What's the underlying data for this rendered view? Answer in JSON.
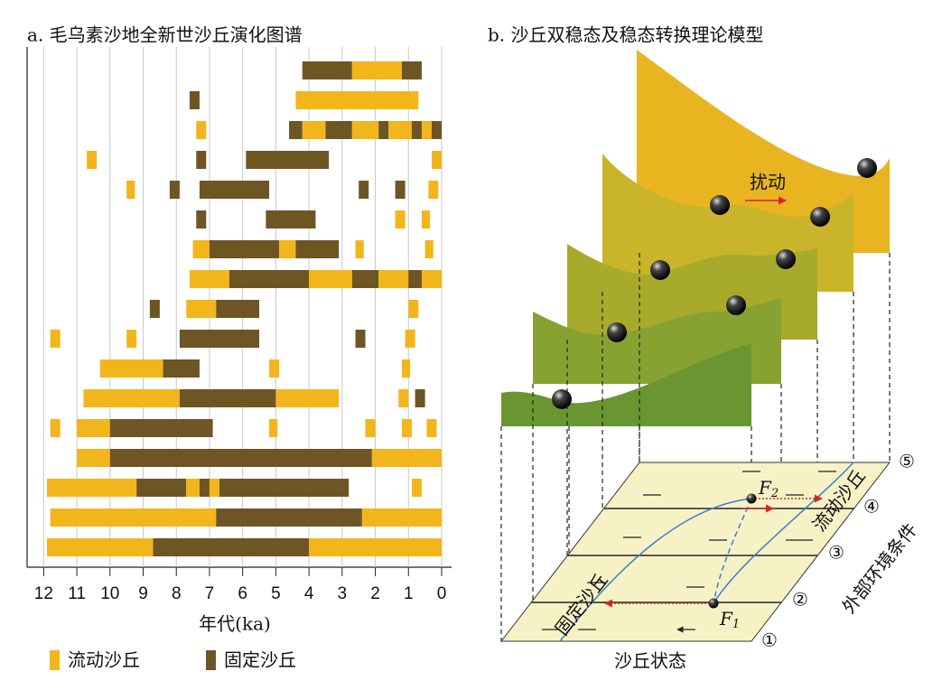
{
  "chart_data": {
    "type": "range-bar",
    "title": "a. 毛乌素沙地全新世沙丘演化图谱",
    "x_label": "年代(ka)",
    "xlim": [
      12.5,
      -0.3
    ],
    "xticks": [
      12,
      11,
      10,
      9,
      8,
      7,
      6,
      5,
      4,
      3,
      2,
      1,
      0
    ],
    "grid": true,
    "series": [
      {
        "name": "流动沙丘",
        "color": "#f2b51c"
      },
      {
        "name": "固定沙丘",
        "color": "#6e5524"
      }
    ],
    "rows": [
      [
        [
          4.2,
          2.7,
          1
        ],
        [
          2.7,
          1.2,
          0
        ],
        [
          1.2,
          0.6,
          1
        ]
      ],
      [
        [
          7.6,
          7.3,
          1
        ],
        [
          4.4,
          0.7,
          0
        ]
      ],
      [
        [
          7.4,
          7.1,
          0
        ],
        [
          4.6,
          4.2,
          1
        ],
        [
          4.2,
          3.5,
          0
        ],
        [
          3.5,
          2.7,
          1
        ],
        [
          2.7,
          1.9,
          0
        ],
        [
          1.9,
          1.6,
          1
        ],
        [
          1.6,
          0.9,
          0
        ],
        [
          0.9,
          0.6,
          1
        ],
        [
          0.6,
          0.3,
          0
        ],
        [
          0.3,
          0,
          1
        ]
      ],
      [
        [
          10.7,
          10.4,
          0
        ],
        [
          7.4,
          7.1,
          1
        ],
        [
          5.9,
          3.4,
          1
        ],
        [
          0.3,
          0,
          0
        ]
      ],
      [
        [
          9.5,
          9.25,
          0
        ],
        [
          8.2,
          7.9,
          1
        ],
        [
          7.3,
          5.2,
          1
        ],
        [
          2.5,
          2.2,
          1
        ],
        [
          1.4,
          1.1,
          1
        ],
        [
          0.4,
          0.1,
          0
        ]
      ],
      [
        [
          7.4,
          7.1,
          1
        ],
        [
          5.3,
          3.8,
          1
        ],
        [
          1.4,
          1.1,
          0
        ],
        [
          0.6,
          0.35,
          0
        ]
      ],
      [
        [
          7.5,
          7.0,
          0
        ],
        [
          7.0,
          4.9,
          1
        ],
        [
          4.9,
          4.4,
          0
        ],
        [
          4.4,
          3.1,
          1
        ],
        [
          2.6,
          2.35,
          0
        ],
        [
          0.5,
          0.25,
          0
        ]
      ],
      [
        [
          7.6,
          6.4,
          0
        ],
        [
          6.4,
          4.0,
          1
        ],
        [
          4.0,
          2.7,
          0
        ],
        [
          2.7,
          1.9,
          1
        ],
        [
          1.9,
          1.0,
          0
        ],
        [
          1.0,
          0.6,
          1
        ],
        [
          0.6,
          0,
          0
        ]
      ],
      [
        [
          8.8,
          8.5,
          1
        ],
        [
          7.7,
          6.8,
          0
        ],
        [
          6.8,
          5.5,
          1
        ],
        [
          1.0,
          0.7,
          0
        ]
      ],
      [
        [
          11.8,
          11.5,
          0
        ],
        [
          9.5,
          9.2,
          0
        ],
        [
          7.9,
          5.5,
          1
        ],
        [
          2.6,
          2.3,
          1
        ],
        [
          1.1,
          0.8,
          0
        ]
      ],
      [
        [
          10.3,
          8.4,
          0
        ],
        [
          8.4,
          7.3,
          1
        ],
        [
          5.2,
          4.9,
          0
        ],
        [
          1.2,
          0.95,
          0
        ]
      ],
      [
        [
          10.8,
          7.9,
          0
        ],
        [
          7.9,
          5.0,
          1
        ],
        [
          5.0,
          3.1,
          0
        ],
        [
          1.3,
          1.0,
          0
        ],
        [
          0.8,
          0.5,
          1
        ]
      ],
      [
        [
          11.8,
          11.5,
          0
        ],
        [
          11.0,
          10.0,
          0
        ],
        [
          10.0,
          6.9,
          1
        ],
        [
          5.2,
          4.95,
          0
        ],
        [
          2.3,
          2.0,
          0
        ],
        [
          1.2,
          0.9,
          0
        ],
        [
          0.45,
          0.15,
          0
        ]
      ],
      [
        [
          11.0,
          10.0,
          0
        ],
        [
          10.0,
          2.1,
          1
        ],
        [
          2.1,
          0,
          0
        ]
      ],
      [
        [
          11.9,
          9.2,
          0
        ],
        [
          9.2,
          7.7,
          1
        ],
        [
          7.7,
          7.3,
          0
        ],
        [
          7.3,
          7.0,
          1
        ],
        [
          7.0,
          6.7,
          0
        ],
        [
          6.7,
          2.8,
          1
        ],
        [
          0.9,
          0.6,
          0
        ]
      ],
      [
        [
          11.8,
          6.8,
          0
        ],
        [
          6.8,
          2.4,
          1
        ],
        [
          2.4,
          0,
          0
        ]
      ],
      [
        [
          11.9,
          8.7,
          0
        ],
        [
          8.7,
          4.0,
          1
        ],
        [
          4.0,
          0,
          0
        ]
      ]
    ]
  },
  "diagram": {
    "title": "b. 沙丘双稳态及稳态转换理论模型",
    "disturbance": "扰动",
    "f2": {
      "main": "F",
      "sub": "2"
    },
    "f1": {
      "main": "F",
      "sub": "1"
    },
    "mobile": "流动沙丘",
    "fixed": "固定沙丘",
    "environment": "外部环境条件",
    "state": "沙丘状态",
    "levels": [
      "①",
      "②",
      "③",
      "④",
      "⑤"
    ]
  }
}
